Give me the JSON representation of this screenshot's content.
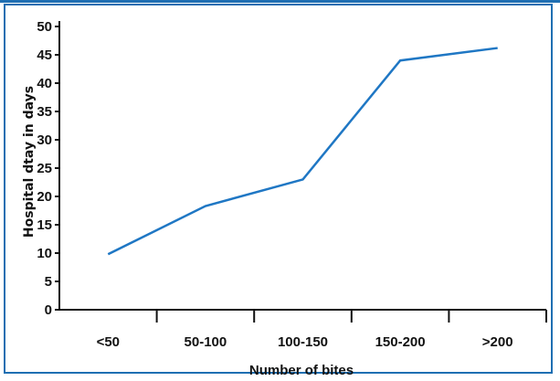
{
  "chart_data": {
    "type": "line",
    "title": "",
    "xlabel": "Number of bites",
    "ylabel": "Hospital dtay in days",
    "categories": [
      "<50",
      "50-100",
      "100-150",
      "150-200",
      ">200"
    ],
    "series": [
      {
        "values": [
          9.8,
          18.3,
          23,
          44,
          46.2
        ]
      }
    ],
    "ylim": [
      0,
      50
    ],
    "yticks": [
      0,
      5,
      10,
      15,
      20,
      25,
      30,
      35,
      40,
      45,
      50
    ],
    "grid": false,
    "line_color": "#1f77c4",
    "frame_color": "#1f6fb2"
  }
}
